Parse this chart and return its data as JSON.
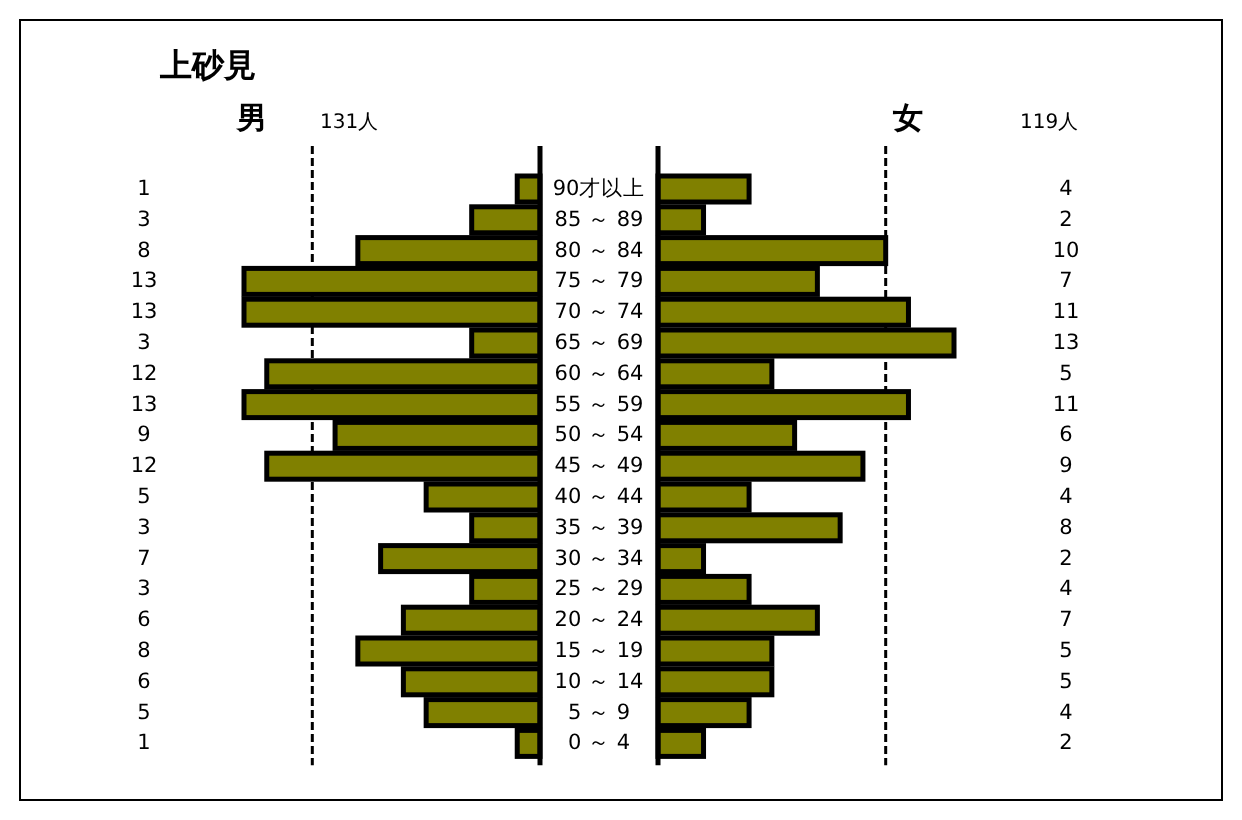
{
  "chart_data": [
    {
      "type": "bar",
      "orientation": "horizontal",
      "title": "上砂見",
      "xlim": [
        13,
        0
      ],
      "tick_labels": "y",
      "categories": [
        "90才以上",
        "85 ～ 89",
        "80 ～ 84",
        "75 ～ 79",
        "70 ～ 74",
        "65 ～ 69",
        "60 ～ 64",
        "55 ～ 59",
        "50 ～ 54",
        "45 ～ 49",
        "40 ～ 44",
        "35 ～ 39",
        "30 ～ 34",
        "25 ～ 29",
        "20 ～ 24",
        "15 ～ 19",
        "10 ～ 14",
        "5 ～ 9",
        "0 ～ 4"
      ],
      "series": [
        {
          "name": "男",
          "color": "#808000",
          "values": [
            1,
            3,
            8,
            13,
            13,
            3,
            12,
            13,
            9,
            12,
            5,
            3,
            7,
            3,
            6,
            8,
            6,
            5,
            1
          ]
        }
      ],
      "data_labels": true,
      "ref_lines": [
        {
          "axis": "x",
          "value": 10,
          "line_style": "dashed"
        }
      ],
      "annotations": [
        "131人"
      ]
    },
    {
      "type": "bar",
      "orientation": "horizontal",
      "xlim": [
        0,
        13
      ],
      "categories": [
        null,
        null,
        null,
        null,
        null,
        null,
        null,
        null,
        null,
        null,
        null,
        null,
        null,
        null,
        null,
        null,
        null,
        null,
        null
      ],
      "series": [
        {
          "name": "女",
          "color": "#808000",
          "values": [
            4,
            2,
            10,
            7,
            11,
            13,
            5,
            11,
            6,
            9,
            4,
            8,
            2,
            4,
            7,
            5,
            5,
            4,
            2
          ]
        }
      ],
      "data_labels": true,
      "ref_lines": [
        {
          "axis": "x",
          "value": 10,
          "line_style": "dashed"
        }
      ],
      "annotations": [
        "119人"
      ]
    }
  ]
}
